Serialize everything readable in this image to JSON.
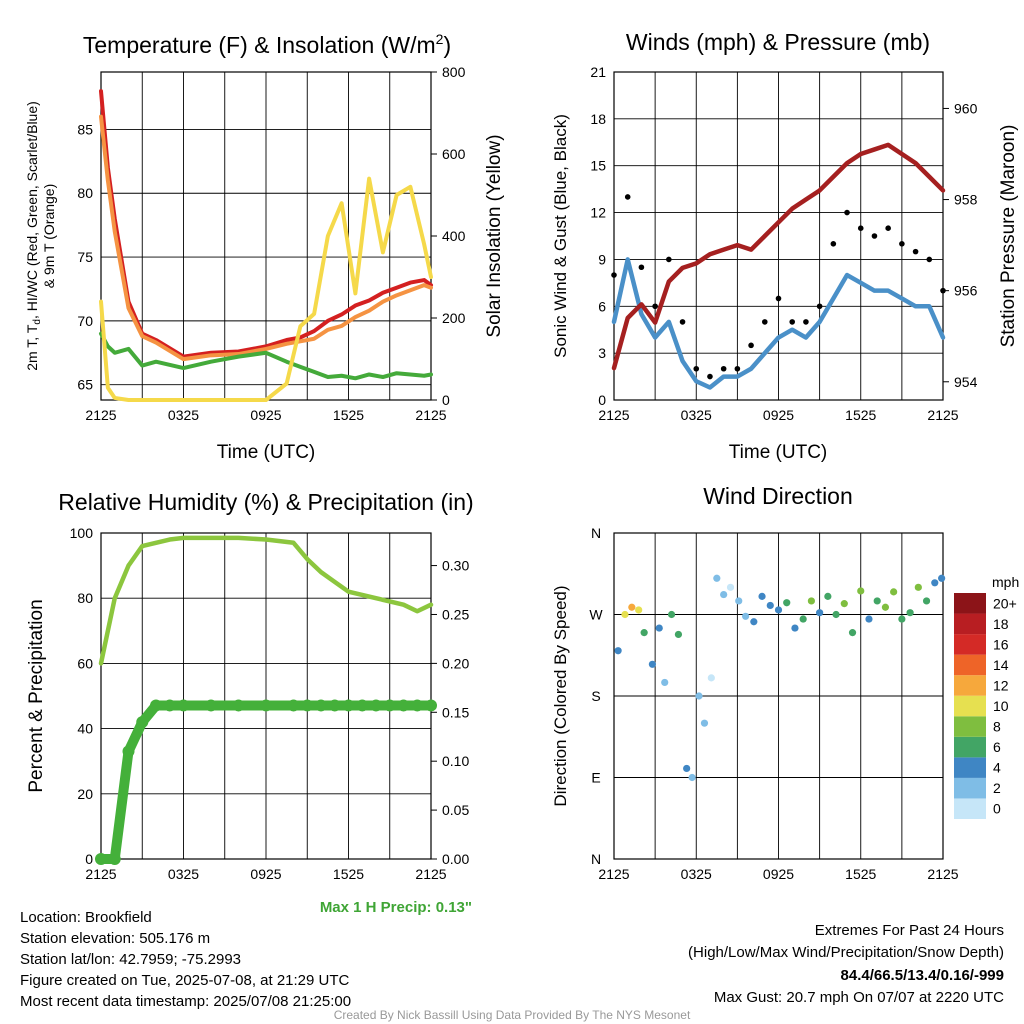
{
  "chart_data": [
    {
      "type": "line",
      "title": "Temperature (F) & Insolation (W/m²)",
      "xlabel": "Time (UTC)",
      "ylabel": "2m T, Td, HI/WC (Red, Green, Scarlet/Blue) & 9m T (Orange)",
      "y2label": "Solar Insolation (Yellow)",
      "x_ticks": [
        "2125",
        "0325",
        "0925",
        "1525",
        "2125"
      ],
      "y_ticks": [
        "65",
        "70",
        "75",
        "80",
        "85"
      ],
      "y2_ticks": [
        "0",
        "200",
        "400",
        "600",
        "800"
      ],
      "ylim": [
        63.8,
        89.5
      ],
      "y2lim": [
        0,
        800
      ],
      "hours_from_start": [
        0,
        0.5,
        1,
        2,
        3,
        4,
        6,
        8,
        10,
        12,
        13.5,
        14.5,
        15.5,
        16.5,
        17.5,
        18.5,
        19.5,
        20.5,
        21.5,
        22.5,
        23.5,
        24
      ],
      "series": [
        {
          "color": "#d42020",
          "values": [
            88,
            82,
            78,
            71.5,
            69,
            68.5,
            67.2,
            67.5,
            67.6,
            68,
            68.5,
            68.7,
            69.2,
            70,
            70.5,
            71.2,
            71.6,
            72.2,
            72.6,
            73,
            73.2,
            72.8
          ]
        },
        {
          "color": "#f59342",
          "values": [
            86,
            81,
            77,
            71,
            68.8,
            68.3,
            67,
            67.3,
            67.4,
            67.8,
            68.2,
            68.4,
            68.6,
            69.3,
            69.6,
            70.3,
            70.8,
            71.5,
            72,
            72.4,
            72.8,
            72.6
          ]
        },
        {
          "color": "#44aa3a",
          "values": [
            69,
            68,
            67.5,
            67.8,
            66.5,
            66.8,
            66.3,
            66.8,
            67.2,
            67.5,
            66.8,
            66.4,
            66,
            65.6,
            65.7,
            65.5,
            65.8,
            65.6,
            65.9,
            65.8,
            65.7,
            65.8
          ]
        },
        {
          "color": "#f5d94a",
          "axis": "y2",
          "values": [
            240,
            30,
            5,
            0,
            0,
            0,
            0,
            0,
            0,
            0,
            40,
            180,
            210,
            400,
            480,
            260,
            540,
            360,
            500,
            520,
            380,
            300
          ]
        }
      ]
    },
    {
      "type": "line",
      "title": "Winds (mph) & Pressure (mb)",
      "xlabel": "Time (UTC)",
      "ylabel": "Sonic Wind & Gust (Blue, Black)",
      "y2label": "Station Pressure (Maroon)",
      "x_ticks": [
        "2125",
        "0325",
        "0925",
        "1525",
        "2125"
      ],
      "y_ticks": [
        "0",
        "3",
        "6",
        "9",
        "12",
        "15",
        "18",
        "21"
      ],
      "y2_ticks": [
        "954",
        "956",
        "958",
        "960"
      ],
      "ylim": [
        0,
        21
      ],
      "y2lim": [
        953.6,
        960.8
      ],
      "hours_from_start": [
        0,
        1,
        2,
        3,
        4,
        5,
        6,
        7,
        8,
        9,
        10,
        11,
        12,
        13,
        14,
        15,
        16,
        17,
        18,
        19,
        20,
        21,
        22,
        23,
        24
      ],
      "series": [
        {
          "color": "#4a90c8",
          "values": [
            5,
            9,
            5.5,
            4,
            5,
            2.5,
            1.2,
            0.8,
            1.5,
            1.5,
            2,
            3,
            4,
            4.5,
            4,
            5,
            6.5,
            8,
            7.5,
            7,
            7,
            6.5,
            6,
            6,
            4
          ]
        },
        {
          "color": "#000000",
          "points": "true",
          "values": [
            8,
            13,
            8.5,
            6,
            9,
            5,
            2,
            1.5,
            2,
            2,
            3.5,
            5,
            6.5,
            5,
            5,
            6,
            10,
            12,
            11,
            10.5,
            11,
            10,
            9.5,
            9,
            7
          ]
        },
        {
          "color": "#a52020",
          "axis": "y2",
          "values": [
            954.3,
            955.4,
            955.7,
            955.3,
            956.2,
            956.5,
            956.6,
            956.8,
            956.9,
            957.0,
            956.9,
            957.2,
            957.5,
            957.8,
            958.0,
            958.2,
            958.5,
            958.8,
            959.0,
            959.1,
            959.2,
            959.0,
            958.8,
            958.5,
            958.2
          ]
        }
      ]
    },
    {
      "type": "line",
      "title": "Relative Humidity (%) & Precipitation (in)",
      "ylabel": "Percent & Precipitation",
      "x_ticks": [
        "2125",
        "0325",
        "0925",
        "1525",
        "2125"
      ],
      "y_ticks": [
        "0",
        "20",
        "40",
        "60",
        "80",
        "100"
      ],
      "y2_ticks": [
        "0.00",
        "0.05",
        "0.10",
        "0.15",
        "0.20",
        "0.25",
        "0.30"
      ],
      "ylim": [
        0,
        100
      ],
      "y2lim": [
        0,
        0.3333
      ],
      "hours_from_start": [
        0,
        1,
        2,
        3,
        4,
        5,
        6,
        8,
        10,
        12,
        14,
        15,
        16,
        17,
        18,
        19,
        20,
        21,
        22,
        23,
        24
      ],
      "series": [
        {
          "color": "#8cc63e",
          "values": [
            60,
            80,
            90,
            96,
            97,
            98,
            98.5,
            98.5,
            98.5,
            98,
            97,
            92,
            88,
            85,
            82,
            81,
            80,
            79,
            78,
            76,
            78
          ]
        },
        {
          "color": "#44b03a",
          "axis": "y2",
          "values": [
            0,
            0,
            0.11,
            0.14,
            0.157,
            0.157,
            0.157,
            0.157,
            0.157,
            0.157,
            0.157,
            0.157,
            0.157,
            0.157,
            0.157,
            0.157,
            0.157,
            0.157,
            0.157,
            0.157,
            0.157
          ]
        }
      ],
      "annotation": "Max 1 H Precip: 0.13\""
    },
    {
      "type": "scatter",
      "title": "Wind Direction",
      "ylabel": "Direction (Colored By Speed)",
      "x_ticks": [
        "2125",
        "0325",
        "0925",
        "1525",
        "2125"
      ],
      "y_ticks": [
        "N",
        "E",
        "S",
        "W",
        "N"
      ],
      "colorbar_title": "mph",
      "colorbar_labels": [
        "0",
        "2",
        "4",
        "6",
        "8",
        "10",
        "12",
        "14",
        "16",
        "18",
        "20+"
      ],
      "colorbar_colors": [
        "#c6e6f8",
        "#7fbde6",
        "#3f86c4",
        "#42a565",
        "#7fbe3f",
        "#e6e050",
        "#f6a83c",
        "#ee6428",
        "#d42a26",
        "#b81e22",
        "#8c1418"
      ],
      "hours_from_start": [
        0.3,
        0.8,
        1.3,
        1.8,
        2.2,
        2.8,
        3.3,
        3.7,
        4.2,
        4.7,
        5.3,
        5.7,
        6.2,
        6.6,
        7.1,
        7.5,
        8,
        8.5,
        9.1,
        9.6,
        10.2,
        10.8,
        11.4,
        12,
        12.6,
        13.2,
        13.8,
        14.4,
        15,
        15.6,
        16.2,
        16.8,
        17.4,
        18,
        18.6,
        19.2,
        19.8,
        20.4,
        21,
        21.6,
        22.2,
        22.8,
        23.4,
        23.9
      ],
      "direction_deg": [
        230,
        270,
        278,
        275,
        250,
        215,
        255,
        195,
        270,
        248,
        100,
        90,
        180,
        150,
        200,
        310,
        292,
        300,
        285,
        268,
        262,
        290,
        280,
        275,
        283,
        255,
        265,
        285,
        272,
        290,
        270,
        282,
        250,
        296,
        265,
        285,
        278,
        295,
        265,
        272,
        300,
        285,
        305,
        310
      ],
      "speed_mph": [
        4,
        9,
        12,
        10,
        6,
        4,
        3,
        2,
        6,
        5,
        3,
        2,
        1,
        2,
        0,
        1,
        1,
        0,
        1,
        2,
        3,
        3,
        3,
        4,
        5,
        4,
        6,
        7,
        4,
        5,
        6,
        8,
        5,
        7,
        4,
        6,
        8,
        7,
        5,
        6,
        7,
        5,
        4,
        4
      ]
    }
  ],
  "info": {
    "location": "Location: Brookfield",
    "elevation": "Station elevation: 505.176 m",
    "latlon": "Station lat/lon: 42.7959; -75.2993",
    "created": "Figure created on Tue, 2025-07-08, at 21:29 UTC",
    "recent": "Most recent data timestamp: 2025/07/08 21:25:00"
  },
  "extremes": {
    "title": "Extremes For Past 24 Hours",
    "subtitle": "(High/Low/Max Wind/Precipitation/Snow Depth)",
    "values": "84.4/66.5/13.4/0.16/-999",
    "values_color": "#c0262a",
    "gust": "Max Gust: 20.7 mph On 07/07 at 2220 UTC"
  },
  "credit": "Created By Nick Bassill Using Data Provided By The NYS Mesonet"
}
